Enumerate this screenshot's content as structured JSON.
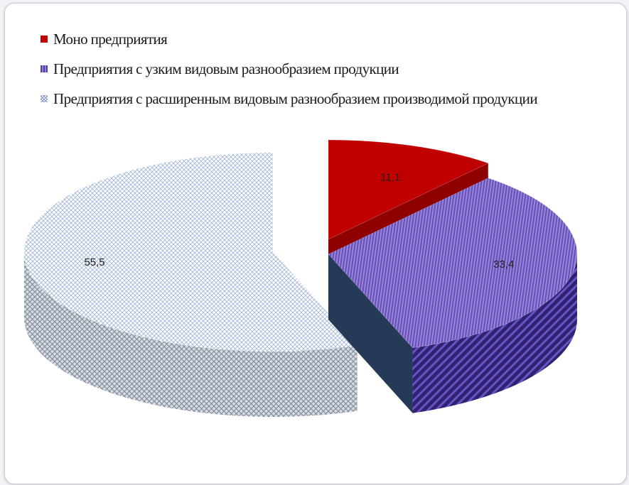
{
  "chart_data": {
    "type": "pie",
    "style": "3d-exploded",
    "legend_position": "top-left",
    "categories": [
      "Моно предприятия",
      "Предприятия с узким видовым разнообразием продукции",
      "Предприятия с расширенным видовым разнообразием производимой продукции"
    ],
    "values": [
      11.1,
      33.4,
      55.5
    ],
    "value_labels": [
      "11,1",
      "33,4",
      "55,5"
    ],
    "colors": [
      "#c00000",
      "#6a4fb5",
      "#c9d6ea"
    ]
  }
}
